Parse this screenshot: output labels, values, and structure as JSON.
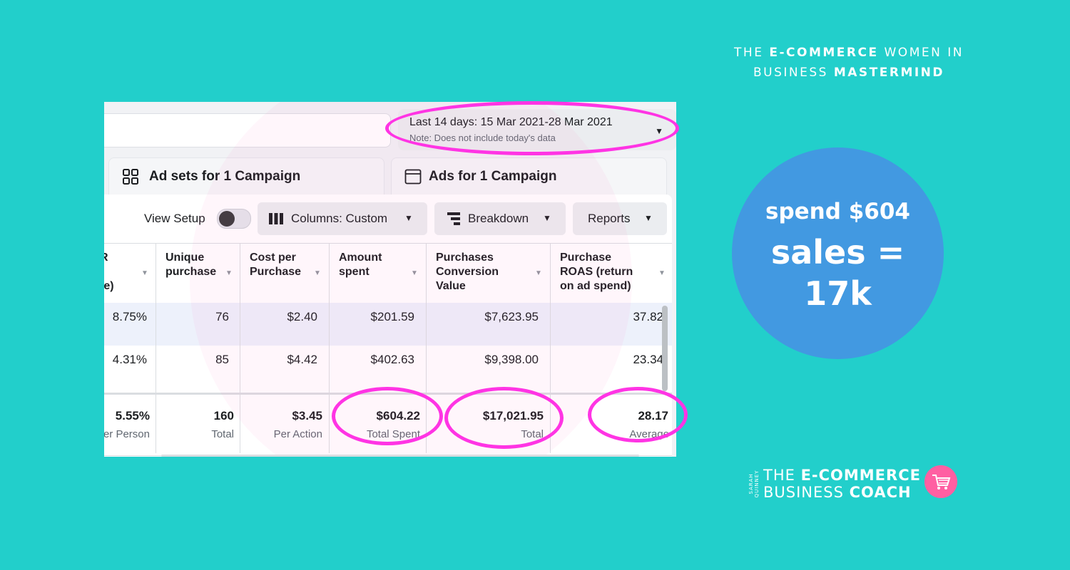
{
  "brand_top": {
    "line1_pre": "THE ",
    "line1_bold": "E-COMMERCE",
    "line1_post": " WOMEN IN",
    "line2_pre": "BUSINESS ",
    "line2_bold": "MASTERMIND"
  },
  "date_range": {
    "label": "Last 14 days: 15 Mar 2021-28 Mar 2021",
    "note": "Note: Does not include today's data"
  },
  "tabs": [
    {
      "label": "Ad sets for 1 Campaign",
      "icon": "grid-icon"
    },
    {
      "label": "Ads for 1 Campaign",
      "icon": "window-icon"
    }
  ],
  "toolbar": {
    "view_setup_label": "View Setup",
    "columns_label": "Columns: Custom",
    "breakdown_label": "Breakdown",
    "reports_label": "Reports"
  },
  "table": {
    "headers": [
      "R\n\nte)",
      "Unique\npurchase",
      "Cost per\nPurchase",
      "Amount\nspent",
      "Purchases\nConversion\nValue",
      "Purchase\nROAS (return\non ad spend)"
    ],
    "rows": [
      [
        "8.75%",
        "76",
        "$2.40",
        "$201.59",
        "$7,623.95",
        "37.82"
      ],
      [
        "4.31%",
        "85",
        "$4.42",
        "$402.63",
        "$9,398.00",
        "23.34"
      ]
    ],
    "totals": [
      {
        "value": "5.55%",
        "sub": "er Person"
      },
      {
        "value": "160",
        "sub": "Total"
      },
      {
        "value": "$3.45",
        "sub": "Per Action"
      },
      {
        "value": "$604.22",
        "sub": "Total Spent"
      },
      {
        "value": "$17,021.95",
        "sub": "Total"
      },
      {
        "value": "28.17",
        "sub": "Average"
      }
    ]
  },
  "stat": {
    "line1": "spend $604",
    "line2": "sales =",
    "line3": "17k"
  },
  "logo": {
    "side": "SARAH QUINNEY",
    "line1_pre": "THE ",
    "line1_bold": "E-COMMERCE",
    "line2_pre": "BUSINESS ",
    "line2_bold": "COACH"
  },
  "colors": {
    "background": "#22cfcb",
    "highlight": "#ff34e4",
    "stat_circle": "#4299e1",
    "logo_badge": "#ff5fa2"
  }
}
